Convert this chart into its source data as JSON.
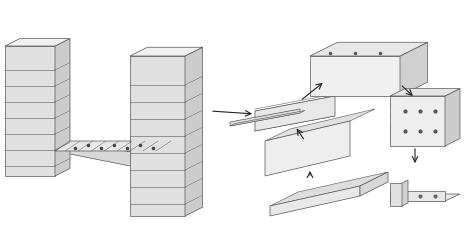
{
  "bg_color": "#f8f8f8",
  "line_color": "#555555",
  "fill_color": "#e8e8e8",
  "fill_light": "#f0f0f0",
  "fill_dark": "#cccccc",
  "arrow_color": "#222222",
  "figsize": [
    4.74,
    2.46
  ],
  "dpi": 100
}
